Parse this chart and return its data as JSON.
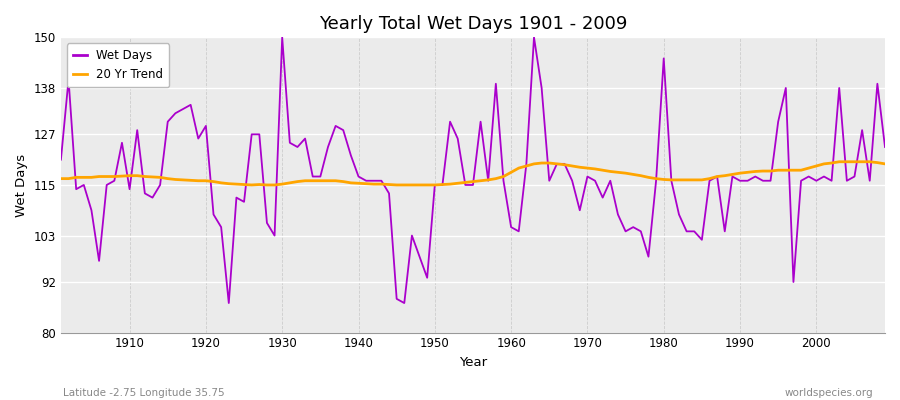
{
  "title": "Yearly Total Wet Days 1901 - 2009",
  "xlabel": "Year",
  "ylabel": "Wet Days",
  "subtitle": "Latitude -2.75 Longitude 35.75",
  "watermark": "worldspecies.org",
  "wet_days_color": "#AA00CC",
  "trend_color": "#FFA500",
  "background_color": "#EBEBEB",
  "fig_bg_color": "#ffffff",
  "ylim": [
    80,
    150
  ],
  "yticks": [
    80,
    92,
    103,
    115,
    127,
    138,
    150
  ],
  "xlim": [
    1901,
    2009
  ],
  "xticks": [
    1910,
    1920,
    1930,
    1940,
    1950,
    1960,
    1970,
    1980,
    1990,
    2000
  ],
  "years": [
    1901,
    1902,
    1903,
    1904,
    1905,
    1906,
    1907,
    1908,
    1909,
    1910,
    1911,
    1912,
    1913,
    1914,
    1915,
    1916,
    1917,
    1918,
    1919,
    1920,
    1921,
    1922,
    1923,
    1924,
    1925,
    1926,
    1927,
    1928,
    1929,
    1930,
    1931,
    1932,
    1933,
    1934,
    1935,
    1936,
    1937,
    1938,
    1939,
    1940,
    1941,
    1942,
    1943,
    1944,
    1945,
    1946,
    1947,
    1948,
    1949,
    1950,
    1951,
    1952,
    1953,
    1954,
    1955,
    1956,
    1957,
    1958,
    1959,
    1960,
    1961,
    1962,
    1963,
    1964,
    1965,
    1966,
    1967,
    1968,
    1969,
    1970,
    1971,
    1972,
    1973,
    1974,
    1975,
    1976,
    1977,
    1978,
    1979,
    1980,
    1981,
    1982,
    1983,
    1984,
    1985,
    1986,
    1987,
    1988,
    1989,
    1990,
    1991,
    1992,
    1993,
    1994,
    1995,
    1996,
    1997,
    1998,
    1999,
    2000,
    2001,
    2002,
    2003,
    2004,
    2005,
    2006,
    2007,
    2008,
    2009
  ],
  "wet_days": [
    121,
    140,
    114,
    115,
    109,
    97,
    115,
    116,
    125,
    114,
    128,
    113,
    112,
    115,
    130,
    132,
    133,
    134,
    126,
    129,
    108,
    105,
    87,
    112,
    111,
    127,
    127,
    106,
    103,
    150,
    125,
    124,
    126,
    117,
    117,
    124,
    129,
    128,
    122,
    117,
    116,
    116,
    116,
    113,
    88,
    87,
    103,
    98,
    93,
    115,
    115,
    130,
    126,
    115,
    115,
    130,
    116,
    139,
    116,
    105,
    104,
    120,
    150,
    138,
    116,
    120,
    120,
    116,
    109,
    117,
    116,
    112,
    116,
    108,
    104,
    105,
    104,
    98,
    116,
    145,
    116,
    108,
    104,
    104,
    102,
    116,
    117,
    104,
    117,
    116,
    116,
    117,
    116,
    116,
    130,
    138,
    92,
    116,
    117,
    116,
    117,
    116,
    138,
    116,
    117,
    128,
    116,
    139,
    124
  ],
  "trend": [
    116.5,
    116.5,
    116.8,
    116.8,
    116.8,
    117.0,
    117.0,
    117.0,
    117.1,
    117.2,
    117.2,
    117.0,
    116.9,
    116.8,
    116.5,
    116.3,
    116.2,
    116.1,
    116.0,
    116.0,
    115.8,
    115.5,
    115.3,
    115.2,
    115.1,
    115.0,
    115.1,
    115.0,
    115.0,
    115.2,
    115.5,
    115.8,
    116.0,
    116.0,
    116.0,
    116.0,
    116.0,
    115.8,
    115.5,
    115.4,
    115.3,
    115.2,
    115.2,
    115.1,
    115.0,
    115.0,
    115.0,
    115.0,
    115.0,
    115.0,
    115.1,
    115.2,
    115.4,
    115.6,
    115.8,
    116.0,
    116.2,
    116.5,
    117.0,
    118.0,
    119.0,
    119.5,
    120.0,
    120.2,
    120.2,
    120.0,
    119.8,
    119.5,
    119.2,
    119.0,
    118.8,
    118.5,
    118.2,
    118.0,
    117.8,
    117.5,
    117.2,
    116.8,
    116.5,
    116.3,
    116.2,
    116.2,
    116.2,
    116.2,
    116.2,
    116.5,
    117.0,
    117.2,
    117.5,
    117.8,
    118.0,
    118.2,
    118.3,
    118.3,
    118.5,
    118.5,
    118.5,
    118.5,
    119.0,
    119.5,
    120.0,
    120.2,
    120.5,
    120.5,
    120.5,
    120.5,
    120.5,
    120.3,
    120.0
  ]
}
